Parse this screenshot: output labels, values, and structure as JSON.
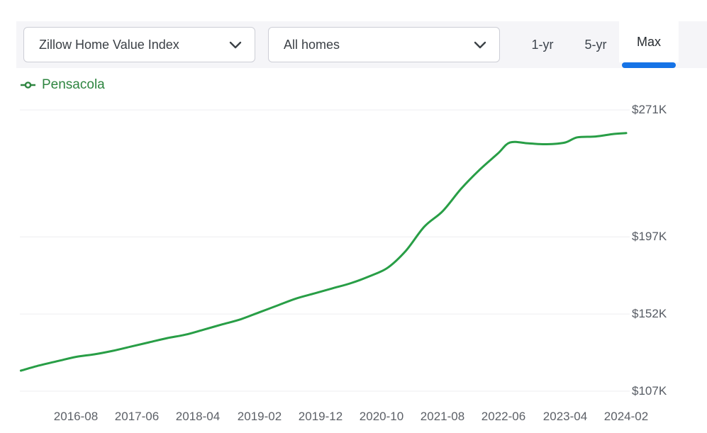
{
  "toolbar": {
    "metric_dropdown": {
      "value": "Zillow Home Value Index"
    },
    "home_type_dropdown": {
      "value": "All homes"
    },
    "range_buttons": [
      {
        "label": "1-yr",
        "selected": false
      },
      {
        "label": "5-yr",
        "selected": false
      },
      {
        "label": "Max",
        "selected": true
      }
    ]
  },
  "legend": {
    "series_label": "Pensacola",
    "color": "#2e8540"
  },
  "colors": {
    "accent_blue": "#1673e6",
    "line_green": "#289e46",
    "toolbar_bg": "#f5f5f8",
    "gridline": "#ededf0"
  },
  "chart_data": {
    "type": "line",
    "title": "Zillow Home Value Index — Pensacola — All homes — Max range",
    "units": "USD thousands",
    "grid": "horizontal",
    "legend_position": "top-left",
    "y_axis_side": "right",
    "y_ticks": [
      "$271K",
      "$197K",
      "$152K",
      "$107K"
    ],
    "y_tick_values": [
      271,
      197,
      152,
      107
    ],
    "x_ticks": [
      "2016-08",
      "2017-06",
      "2018-04",
      "2019-02",
      "2019-12",
      "2020-10",
      "2021-08",
      "2022-06",
      "2023-04",
      "2024-02"
    ],
    "series": [
      {
        "name": "Pensacola",
        "color": "#289e46",
        "points": [
          [
            "2015-11",
            119
          ],
          [
            "2016-02",
            122
          ],
          [
            "2016-05",
            124.5
          ],
          [
            "2016-08",
            127
          ],
          [
            "2016-11",
            128.5
          ],
          [
            "2017-02",
            130.5
          ],
          [
            "2017-05",
            133
          ],
          [
            "2017-08",
            135.5
          ],
          [
            "2017-11",
            138
          ],
          [
            "2018-02",
            140
          ],
          [
            "2018-05",
            143
          ],
          [
            "2018-08",
            146
          ],
          [
            "2018-11",
            149
          ],
          [
            "2019-02",
            153
          ],
          [
            "2019-05",
            157
          ],
          [
            "2019-08",
            161
          ],
          [
            "2019-11",
            164
          ],
          [
            "2020-02",
            167
          ],
          [
            "2020-05",
            170
          ],
          [
            "2020-08",
            174
          ],
          [
            "2020-11",
            179
          ],
          [
            "2021-02",
            189
          ],
          [
            "2021-05",
            203
          ],
          [
            "2021-08",
            212
          ],
          [
            "2021-11",
            225
          ],
          [
            "2022-02",
            236
          ],
          [
            "2022-05",
            245.5
          ],
          [
            "2022-07",
            252
          ],
          [
            "2022-10",
            251.5
          ],
          [
            "2023-01",
            251
          ],
          [
            "2023-04",
            252
          ],
          [
            "2023-06",
            255
          ],
          [
            "2023-09",
            255.5
          ],
          [
            "2023-12",
            257
          ],
          [
            "2024-02",
            257.5
          ]
        ]
      }
    ]
  }
}
